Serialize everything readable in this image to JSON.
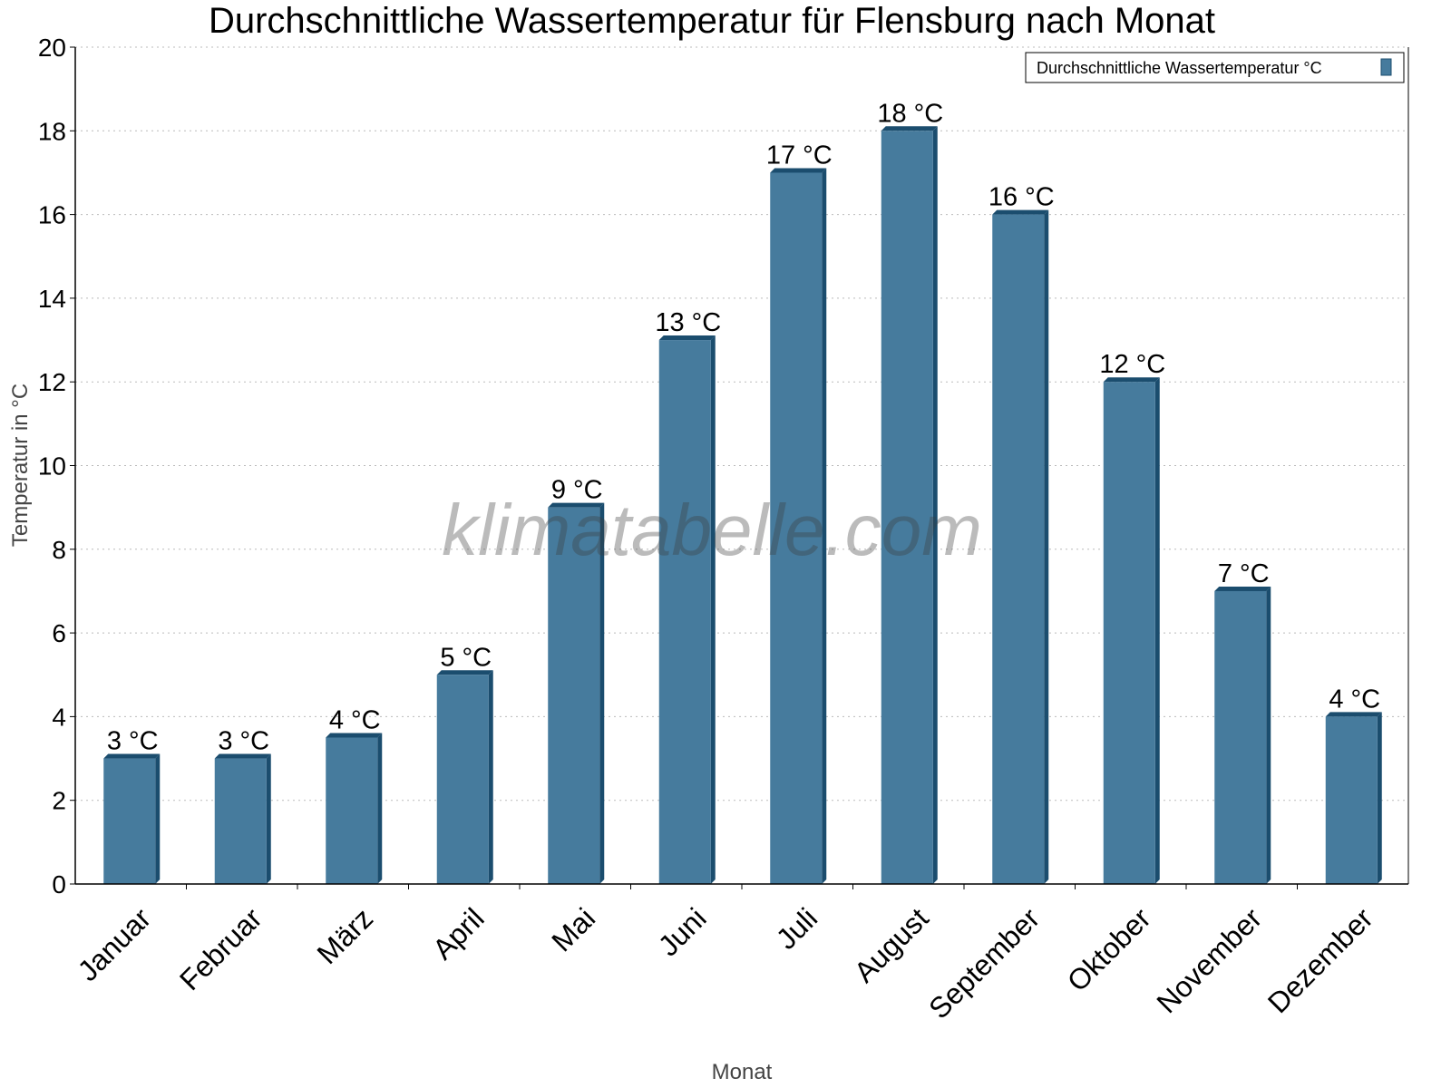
{
  "chart_data": {
    "type": "bar",
    "title": "Durchschnittliche Wassertemperatur für Flensburg nach Monat",
    "xlabel": "Monat",
    "ylabel": "Temperatur in °C",
    "ylim": [
      0,
      20
    ],
    "yticks": [
      0,
      2,
      4,
      6,
      8,
      10,
      12,
      14,
      16,
      18,
      20
    ],
    "grid": true,
    "legend_placement": "top-right",
    "categories": [
      "Januar",
      "Februar",
      "März",
      "April",
      "Mai",
      "Juni",
      "Juli",
      "August",
      "September",
      "Oktober",
      "November",
      "Dezember"
    ],
    "series": [
      {
        "name": "Durchschnittliche Wassertemperatur °C",
        "values": [
          3,
          3,
          3.5,
          5,
          9,
          13,
          17,
          18,
          16,
          12,
          7,
          4
        ],
        "labels": [
          "3 °C",
          "3 °C",
          "4 °C",
          "5 °C",
          "9 °C",
          "13 °C",
          "17 °C",
          "18 °C",
          "16 °C",
          "12 °C",
          "7 °C",
          "4 °C"
        ],
        "color": "#467b9d",
        "shade_color": "#1b4d6e"
      }
    ],
    "watermark": "klimatabelle.com"
  }
}
